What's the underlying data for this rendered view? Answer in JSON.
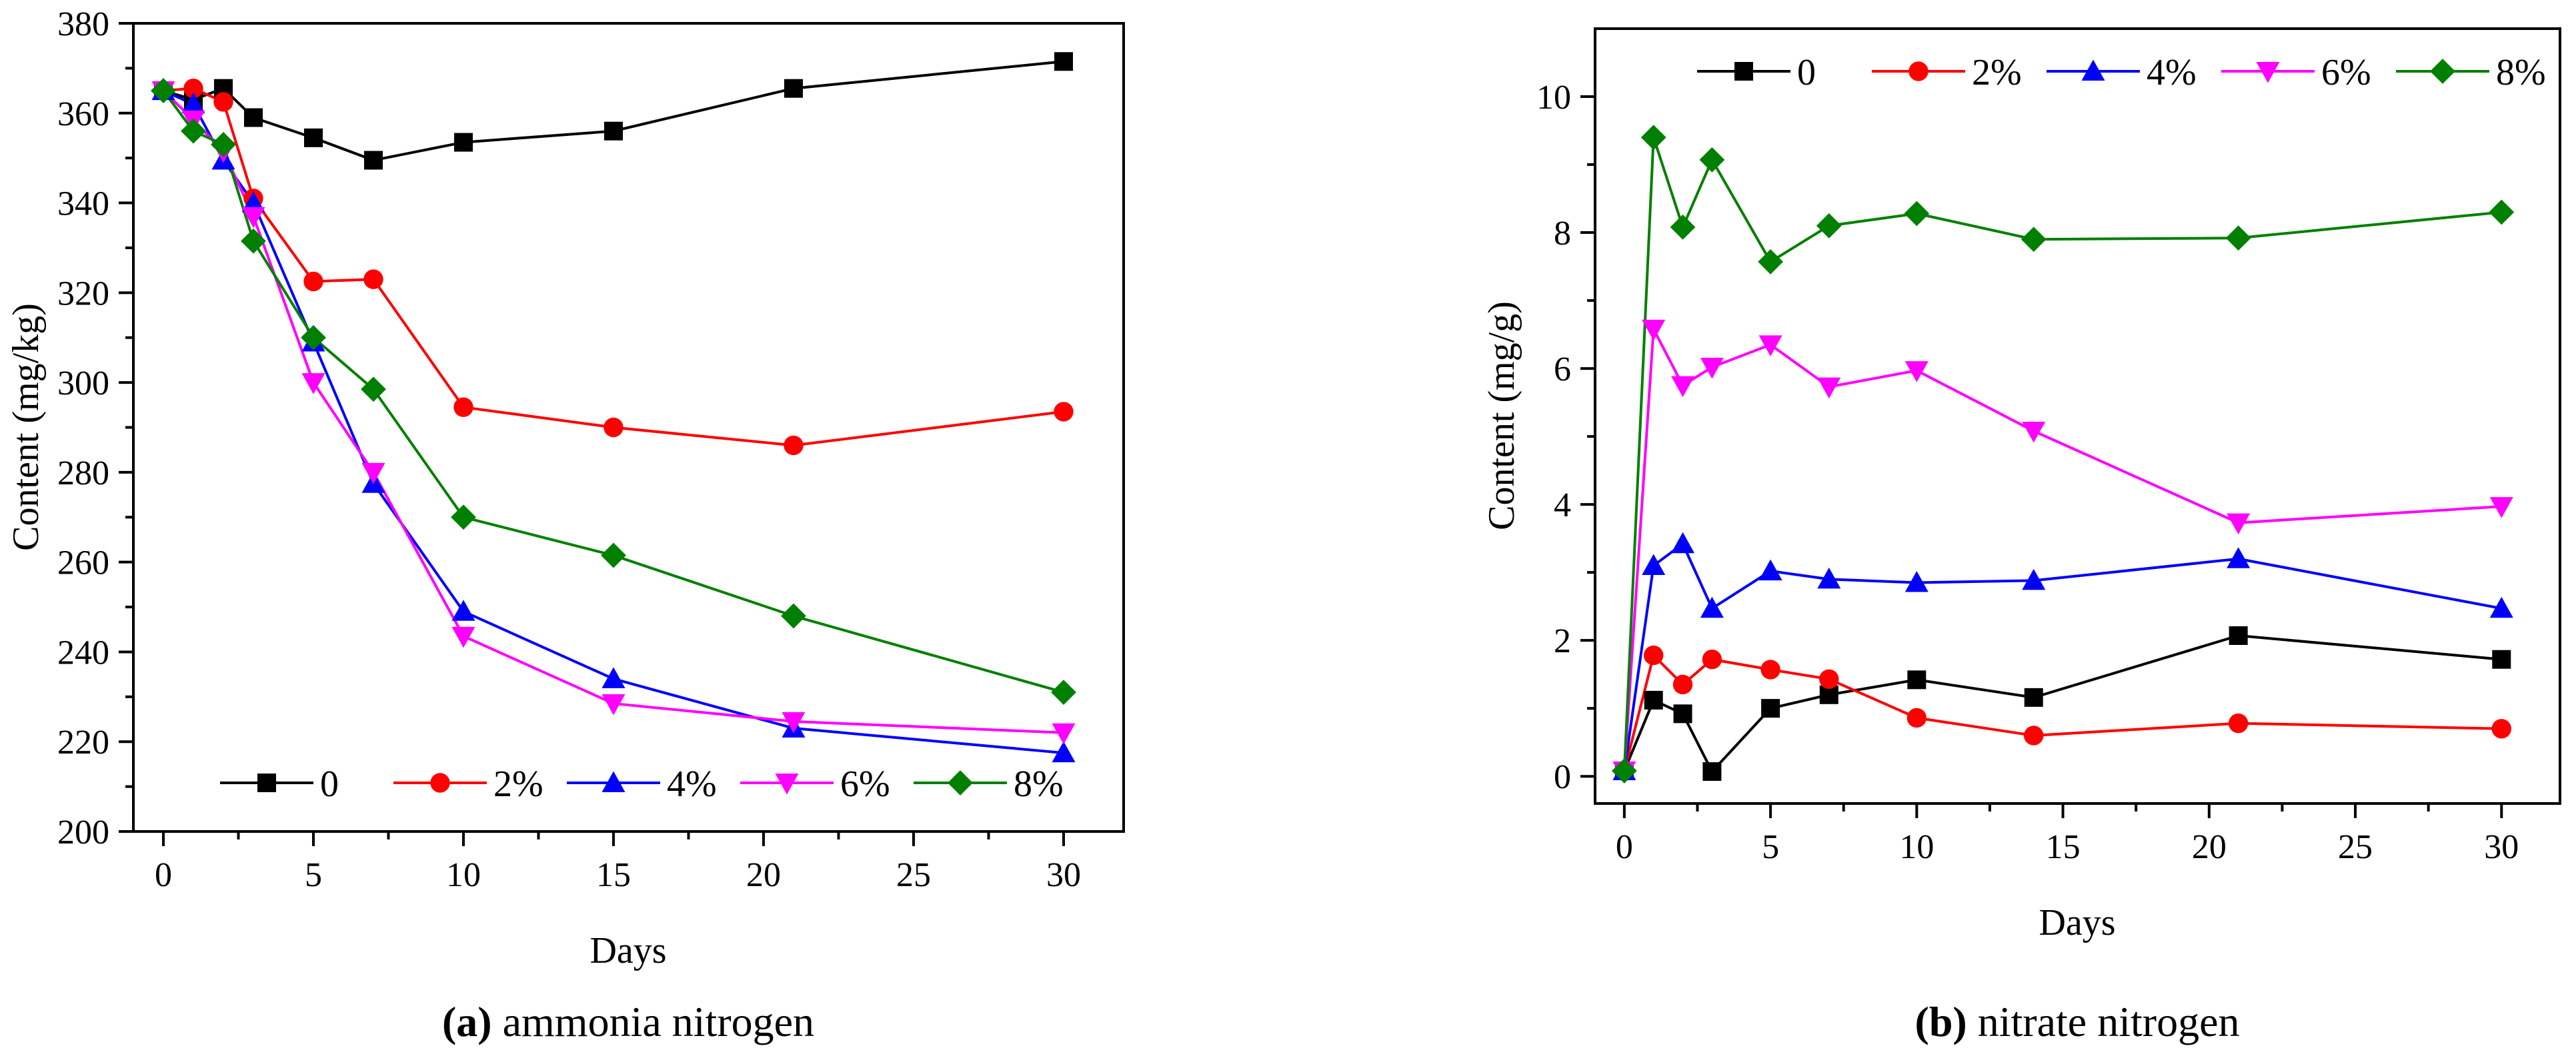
{
  "chart_data": [
    {
      "id": "a",
      "type": "line",
      "caption_letter": "a",
      "caption_text": " ammonia nitrogen",
      "xlabel": "Days",
      "ylabel": "Content (mg/kg)",
      "xlim": [
        -1,
        32
      ],
      "ylim": [
        200,
        380
      ],
      "xticks": [
        0,
        5,
        10,
        15,
        20,
        25,
        30
      ],
      "yticks": [
        200,
        220,
        240,
        260,
        280,
        300,
        320,
        340,
        360,
        380
      ],
      "tick_labels_x": [
        "0",
        "5",
        "10",
        "15",
        "20",
        "25",
        "30"
      ],
      "tick_labels_y": [
        "200",
        "220",
        "240",
        "260",
        "280",
        "300",
        "320",
        "340",
        "360",
        "380"
      ],
      "legend_position": "bottom",
      "x": [
        0,
        1,
        2,
        3,
        5,
        7,
        10,
        15,
        21,
        30
      ],
      "series": [
        {
          "name": "0",
          "color": "#000000",
          "marker": "square",
          "values": [
            365,
            363,
            365.5,
            359,
            354.5,
            349.5,
            353.5,
            356,
            365.5,
            371.5
          ]
        },
        {
          "name": "2%",
          "color": "#ff0000",
          "marker": "circle",
          "values": [
            365,
            365.5,
            362.5,
            341,
            322.5,
            323,
            294.5,
            290,
            286,
            293.5
          ]
        },
        {
          "name": "4%",
          "color": "#0000ff",
          "marker": "triangle-up",
          "values": [
            365,
            362,
            349.5,
            340,
            309,
            277.5,
            249,
            234,
            223,
            217.5
          ]
        },
        {
          "name": "6%",
          "color": "#ff00ff",
          "marker": "triangle-down",
          "values": [
            365,
            358.5,
            351.5,
            337,
            300,
            280,
            243.5,
            228.5,
            224.5,
            222
          ]
        },
        {
          "name": "8%",
          "color": "#008000",
          "marker": "diamond",
          "values": [
            365,
            356,
            353,
            331.5,
            310,
            298.5,
            270,
            261.5,
            248,
            231
          ]
        }
      ]
    },
    {
      "id": "b",
      "type": "line",
      "caption_letter": "b",
      "caption_text": " nitrate nitrogen",
      "xlabel": "Days",
      "ylabel": "Content (mg/g)",
      "xlim": [
        -1,
        32
      ],
      "ylim": [
        -0.4,
        11
      ],
      "xticks": [
        0,
        5,
        10,
        15,
        20,
        25,
        30
      ],
      "yticks": [
        0,
        2,
        4,
        6,
        8,
        10
      ],
      "tick_labels_x": [
        "0",
        "5",
        "10",
        "15",
        "20",
        "25",
        "30"
      ],
      "tick_labels_y": [
        "0",
        "2",
        "4",
        "6",
        "8",
        "10"
      ],
      "legend_position": "top",
      "x": [
        0,
        1,
        2,
        3,
        5,
        7,
        10,
        14,
        21,
        30
      ],
      "series": [
        {
          "name": "0",
          "color": "#000000",
          "marker": "square",
          "values": [
            0.08,
            1.12,
            0.92,
            0.07,
            1.0,
            1.2,
            1.42,
            1.16,
            2.07,
            1.72
          ]
        },
        {
          "name": "2%",
          "color": "#ff0000",
          "marker": "circle",
          "values": [
            0.08,
            1.78,
            1.35,
            1.72,
            1.57,
            1.43,
            0.86,
            0.6,
            0.78,
            0.7
          ]
        },
        {
          "name": "4%",
          "color": "#0000ff",
          "marker": "triangle-up",
          "values": [
            0.08,
            3.1,
            3.42,
            2.47,
            3.02,
            2.9,
            2.85,
            2.88,
            3.2,
            2.47
          ]
        },
        {
          "name": "6%",
          "color": "#ff00ff",
          "marker": "triangle-down",
          "values": [
            0.08,
            6.58,
            5.75,
            6.02,
            6.35,
            5.73,
            5.97,
            5.08,
            3.73,
            3.97
          ]
        },
        {
          "name": "8%",
          "color": "#008000",
          "marker": "diamond",
          "values": [
            0.08,
            9.4,
            8.08,
            9.07,
            7.57,
            8.1,
            8.28,
            7.9,
            7.92,
            8.3
          ]
        }
      ]
    }
  ]
}
